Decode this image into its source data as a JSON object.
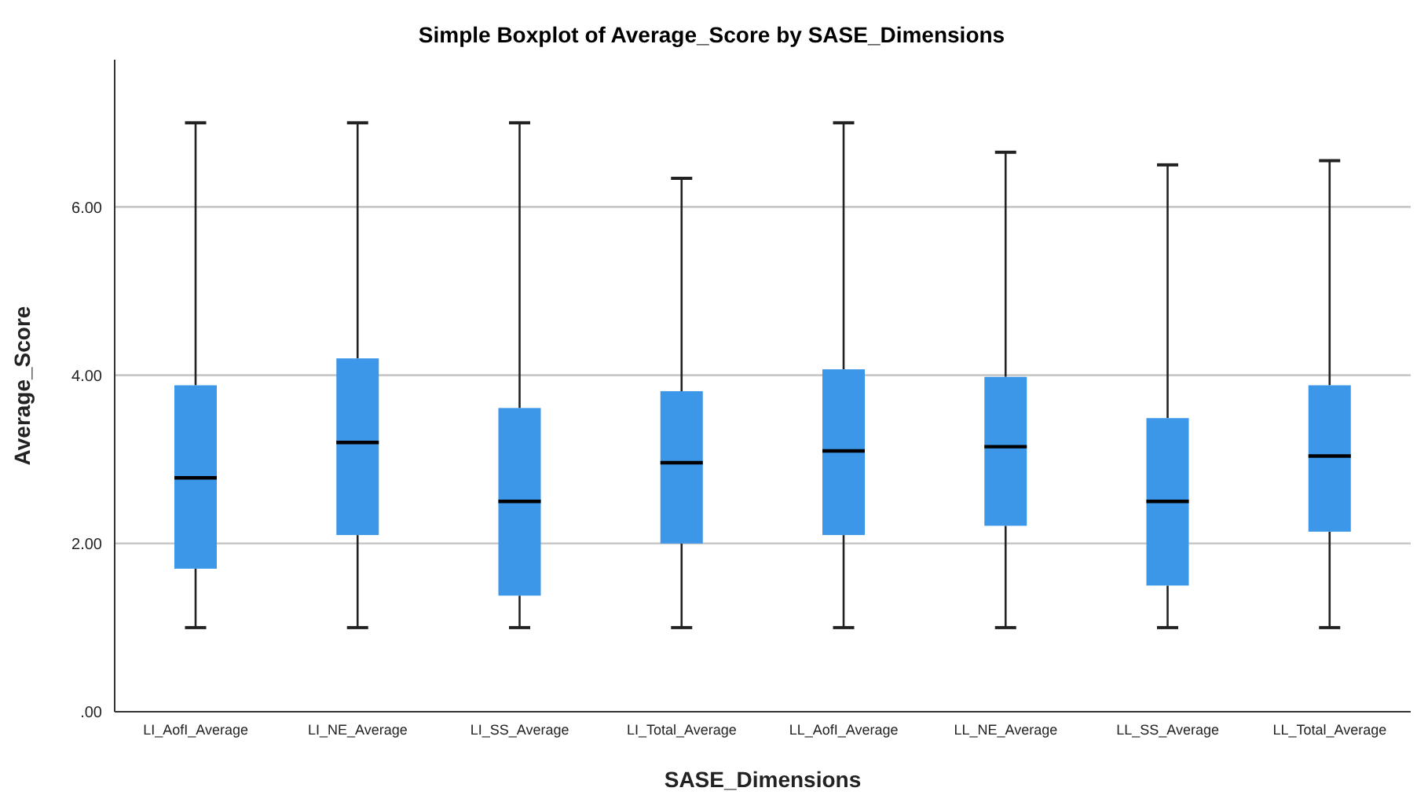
{
  "chart_data": {
    "type": "box",
    "title": "Simple Boxplot of Average_Score by SASE_Dimensions",
    "xlabel": "SASE_Dimensions",
    "ylabel": "Average_Score",
    "categories": [
      "LI_AofI_Average",
      "LI_NE_Average",
      "LI_SS_Average",
      "LI_Total_Average",
      "LL_AofI_Average",
      "LL_NE_Average",
      "LL_SS_Average",
      "LL_Total_Average"
    ],
    "color": "#3d97e8",
    "boxes": [
      {
        "low": 1,
        "q1": 1.7,
        "median": 2.78,
        "q3": 3.88,
        "high": 7
      },
      {
        "low": 1,
        "q1": 2.1,
        "median": 3.2,
        "q3": 4.2,
        "high": 7
      },
      {
        "low": 1,
        "q1": 1.38,
        "median": 2.5,
        "q3": 3.61,
        "high": 7
      },
      {
        "low": 1,
        "q1": 2.0,
        "median": 2.96,
        "q3": 3.81,
        "high": 6.34
      },
      {
        "low": 1,
        "q1": 2.1,
        "median": 3.1,
        "q3": 4.07,
        "high": 7
      },
      {
        "low": 1,
        "q1": 2.21,
        "median": 3.15,
        "q3": 3.98,
        "high": 6.65
      },
      {
        "low": 1,
        "q1": 1.5,
        "median": 2.5,
        "q3": 3.49,
        "high": 6.5
      },
      {
        "low": 1,
        "q1": 2.14,
        "median": 3.04,
        "q3": 3.88,
        "high": 6.55
      }
    ],
    "ylim": [
      0,
      7.75
    ],
    "yticks": [
      {
        "value": 0,
        "label": ".00"
      },
      {
        "value": 2,
        "label": "2.00"
      },
      {
        "value": 4,
        "label": "4.00"
      },
      {
        "value": 6,
        "label": "6.00"
      }
    ],
    "grid": "y"
  }
}
